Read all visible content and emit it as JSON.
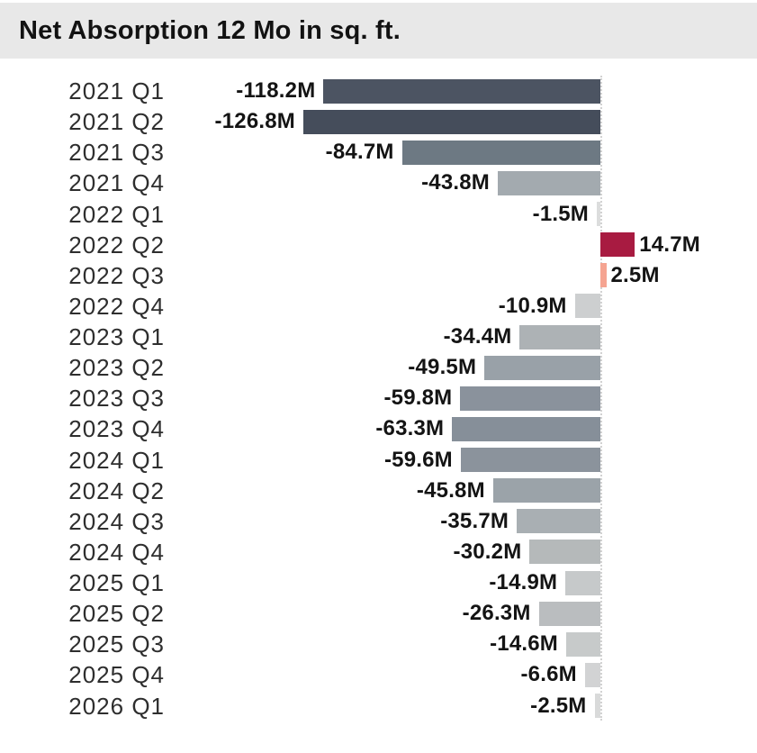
{
  "header": {
    "title": "Net Absorption 12 Mo in sq. ft."
  },
  "colors": {
    "title_band_bg": "#e8e8e8",
    "title_text": "#121212",
    "category_text": "#2e2e2e",
    "value_text": "#141414",
    "baseline_line": "#d2d2d2",
    "page_bg": "#ffffff",
    "positive_large": "#a81b41",
    "positive_small": "#f5a491",
    "negative_dark": "#454d5b",
    "negative_light": "#dcdddd"
  },
  "chart_data": {
    "type": "bar",
    "orientation": "horizontal",
    "title": "Net Absorption 12 Mo in sq. ft.",
    "value_unit": "millions of sq. ft.",
    "value_suffix": "M",
    "baseline_value": 0,
    "value_range": [
      -126.8,
      14.7
    ],
    "legend": "none",
    "grid": "single dotted zero baseline only",
    "categories": [
      "2021 Q1",
      "2021 Q2",
      "2021 Q3",
      "2021 Q4",
      "2022 Q1",
      "2022 Q2",
      "2022 Q3",
      "2022 Q4",
      "2023 Q1",
      "2023 Q2",
      "2023 Q3",
      "2023 Q4",
      "2024 Q1",
      "2024 Q2",
      "2024 Q3",
      "2024 Q4",
      "2025 Q1",
      "2025 Q2",
      "2025 Q3",
      "2025 Q4",
      "2026 Q1"
    ],
    "values": [
      -118.2,
      -126.8,
      -84.7,
      -43.8,
      -1.5,
      14.7,
      2.5,
      -10.9,
      -34.4,
      -49.5,
      -59.8,
      -63.3,
      -59.6,
      -45.8,
      -35.7,
      -30.2,
      -14.9,
      -26.3,
      -14.6,
      -6.6,
      -2.5
    ],
    "value_labels": [
      "-118.2M",
      "-126.8M",
      "-84.7M",
      "-43.8M",
      "-1.5M",
      "14.7M",
      "2.5M",
      "-10.9M",
      "-34.4M",
      "-49.5M",
      "-59.8M",
      "-63.3M",
      "-59.6M",
      "-45.8M",
      "-35.7M",
      "-30.2M",
      "-14.9M",
      "-26.3M",
      "-14.6M",
      "-6.6M",
      "-2.5M"
    ],
    "bar_colors": [
      "#4c5462",
      "#454d5b",
      "#6d7983",
      "#a3aaaf",
      "#dcdddd",
      "#a81b41",
      "#f5a491",
      "#cdcfd0",
      "#adb2b5",
      "#99a1a8",
      "#8a929c",
      "#868f99",
      "#8b939c",
      "#9ba3a9",
      "#a9afb3",
      "#b5b9ba",
      "#c6c9ca",
      "#babdbf",
      "#c7caca",
      "#d2d3d4",
      "#d9dada"
    ]
  }
}
